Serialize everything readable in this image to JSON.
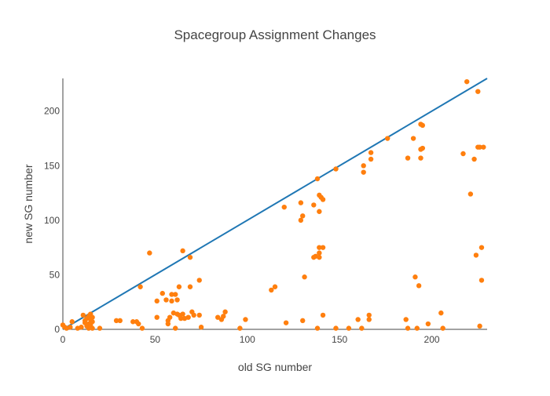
{
  "chart_data": {
    "type": "scatter",
    "title": "Spacegroup Assignment Changes",
    "xlabel": "old SG number",
    "ylabel": "new SG number",
    "xlim": [
      0,
      230
    ],
    "ylim": [
      0,
      230
    ],
    "x_ticks": [
      0,
      50,
      100,
      150,
      200
    ],
    "y_ticks": [
      0,
      50,
      100,
      150,
      200
    ],
    "grid": false,
    "colors": {
      "points": "#ff7f0e",
      "line": "#1f77b4",
      "text": "#444444",
      "axis": "#444444"
    },
    "series": [
      {
        "type": "line",
        "points": [
          [
            0,
            0
          ],
          [
            230,
            230
          ]
        ]
      },
      {
        "type": "scatter",
        "points": [
          [
            0,
            4
          ],
          [
            1,
            2
          ],
          [
            2,
            1
          ],
          [
            4,
            2
          ],
          [
            5,
            7
          ],
          [
            8,
            1
          ],
          [
            10,
            2
          ],
          [
            11,
            13
          ],
          [
            12,
            8
          ],
          [
            12,
            6
          ],
          [
            13,
            10
          ],
          [
            13,
            3
          ],
          [
            14,
            12
          ],
          [
            14,
            5
          ],
          [
            14,
            1
          ],
          [
            15,
            14
          ],
          [
            15,
            9
          ],
          [
            15,
            4
          ],
          [
            15,
            2
          ],
          [
            16,
            11
          ],
          [
            16,
            7
          ],
          [
            16,
            1
          ],
          [
            20,
            1
          ],
          [
            29,
            8
          ],
          [
            31,
            8
          ],
          [
            38,
            7
          ],
          [
            40,
            7
          ],
          [
            41,
            5
          ],
          [
            42,
            39
          ],
          [
            43,
            1
          ],
          [
            47,
            70
          ],
          [
            51,
            11
          ],
          [
            51,
            26
          ],
          [
            54,
            33
          ],
          [
            56,
            27
          ],
          [
            57,
            5
          ],
          [
            57,
            8
          ],
          [
            58,
            11
          ],
          [
            59,
            32
          ],
          [
            59,
            26
          ],
          [
            60,
            15
          ],
          [
            61,
            32
          ],
          [
            61,
            1
          ],
          [
            62,
            27
          ],
          [
            62,
            14
          ],
          [
            63,
            39
          ],
          [
            63,
            13
          ],
          [
            64,
            10
          ],
          [
            65,
            72
          ],
          [
            65,
            14
          ],
          [
            66,
            10
          ],
          [
            68,
            11
          ],
          [
            69,
            39
          ],
          [
            69,
            66
          ],
          [
            70,
            16
          ],
          [
            71,
            13
          ],
          [
            74,
            45
          ],
          [
            75,
            2
          ],
          [
            74,
            13
          ],
          [
            84,
            11
          ],
          [
            86,
            9
          ],
          [
            87,
            12
          ],
          [
            88,
            16
          ],
          [
            96,
            1
          ],
          [
            99,
            9
          ],
          [
            113,
            36
          ],
          [
            115,
            39
          ],
          [
            120,
            112
          ],
          [
            121,
            6
          ],
          [
            129,
            100
          ],
          [
            129,
            116
          ],
          [
            130,
            104
          ],
          [
            130,
            8
          ],
          [
            131,
            48
          ],
          [
            136,
            114
          ],
          [
            136,
            66
          ],
          [
            137,
            67
          ],
          [
            138,
            1
          ],
          [
            138,
            138
          ],
          [
            139,
            123
          ],
          [
            139,
            108
          ],
          [
            139,
            75
          ],
          [
            139,
            70
          ],
          [
            139,
            66
          ],
          [
            140,
            121
          ],
          [
            141,
            119
          ],
          [
            141,
            75
          ],
          [
            141,
            13
          ],
          [
            148,
            147
          ],
          [
            148,
            1
          ],
          [
            155,
            1
          ],
          [
            160,
            9
          ],
          [
            162,
            1
          ],
          [
            163,
            150
          ],
          [
            163,
            144
          ],
          [
            166,
            13
          ],
          [
            166,
            9
          ],
          [
            167,
            156
          ],
          [
            167,
            162
          ],
          [
            176,
            175
          ],
          [
            186,
            9
          ],
          [
            187,
            1
          ],
          [
            187,
            157
          ],
          [
            190,
            175
          ],
          [
            191,
            48
          ],
          [
            192,
            1
          ],
          [
            193,
            40
          ],
          [
            194,
            188
          ],
          [
            195,
            187
          ],
          [
            195,
            166
          ],
          [
            194,
            165
          ],
          [
            194,
            157
          ],
          [
            198,
            5
          ],
          [
            205,
            15
          ],
          [
            206,
            1
          ],
          [
            217,
            161
          ],
          [
            219,
            227
          ],
          [
            221,
            124
          ],
          [
            223,
            156
          ],
          [
            224,
            68
          ],
          [
            225,
            167
          ],
          [
            225,
            218
          ],
          [
            226,
            167
          ],
          [
            226,
            3
          ],
          [
            227,
            45
          ],
          [
            227,
            75
          ],
          [
            228,
            167
          ]
        ]
      }
    ]
  }
}
